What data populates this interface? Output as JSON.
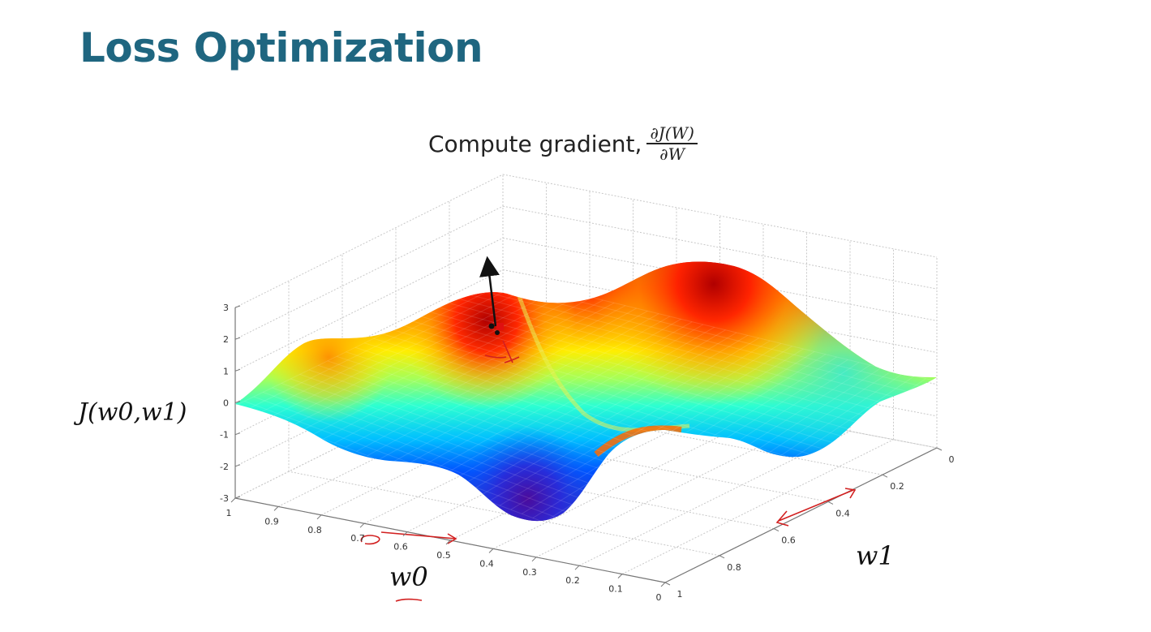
{
  "slide": {
    "title": "Loss Optimization"
  },
  "chart_data": {
    "type": "surface",
    "title_text": "Compute gradient,",
    "title_formula_numerator": "∂J(W)",
    "title_formula_denominator": "∂W",
    "xlabel": "w0",
    "ylabel": "w1",
    "zlabel": "J(w0,w1)",
    "x_ticks": [
      "1",
      "0.9",
      "0.8",
      "0.7",
      "0.6",
      "0.5",
      "0.4",
      "0.3",
      "0.2",
      "0.1",
      "0"
    ],
    "y_ticks": [
      "0",
      "0.2",
      "0.4",
      "0.6",
      "0.8",
      "1"
    ],
    "z_ticks": [
      "3",
      "2",
      "1",
      "0",
      "-1",
      "-2",
      "-3"
    ],
    "xlim": [
      0,
      1
    ],
    "ylim": [
      0,
      1
    ],
    "zlim": [
      -3,
      3
    ],
    "grid": true,
    "colormap": "jet",
    "annotations": {
      "gradient_arrow": "black arrow at point on left peak pointing upward (gradient direction)",
      "hand_drawn_marks_color": "#d22020"
    }
  }
}
